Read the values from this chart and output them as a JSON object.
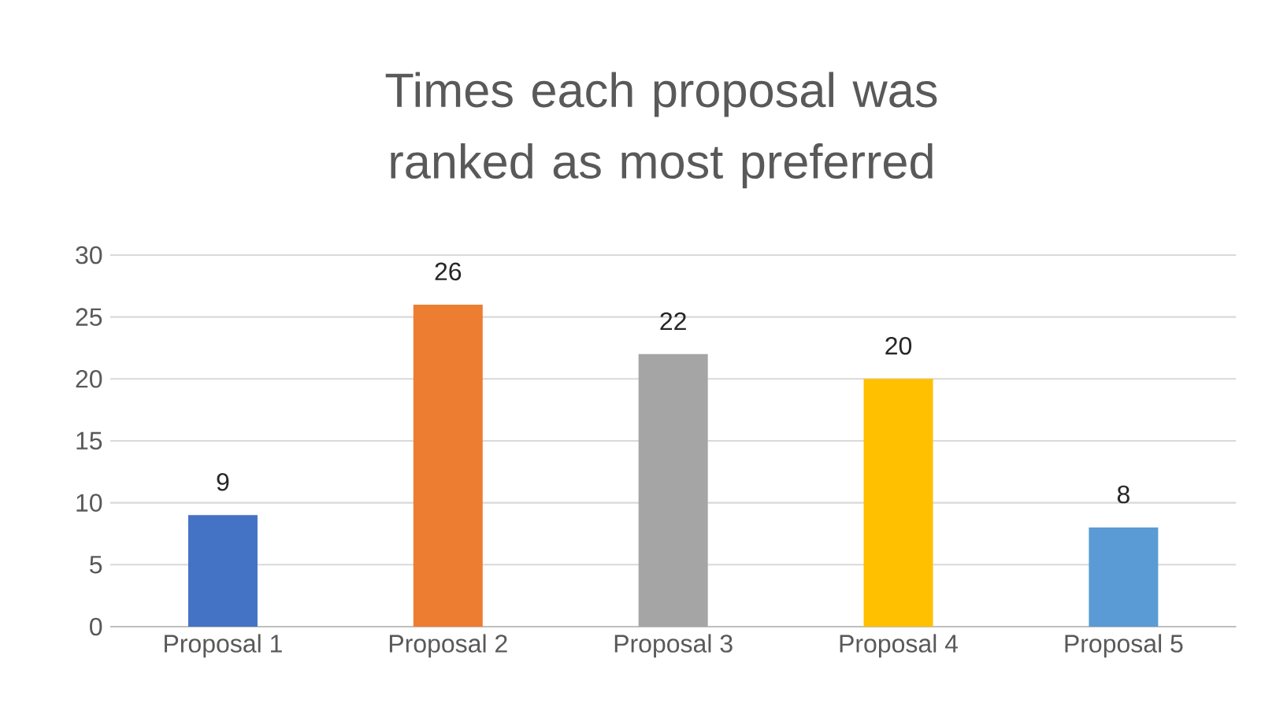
{
  "chart_data": {
    "type": "bar",
    "title": "Times each proposal was ranked as most preferred",
    "categories": [
      "Proposal 1",
      "Proposal 2",
      "Proposal 3",
      "Proposal 4",
      "Proposal 5"
    ],
    "values": [
      9,
      26,
      22,
      20,
      8
    ],
    "colors": [
      "#4472c4",
      "#ed7d31",
      "#a5a5a5",
      "#ffc000",
      "#5b9bd5"
    ],
    "ylim": [
      0,
      30
    ],
    "yticks": [
      0,
      5,
      10,
      15,
      20,
      25,
      30
    ],
    "grid": "y",
    "data_labels": true
  }
}
